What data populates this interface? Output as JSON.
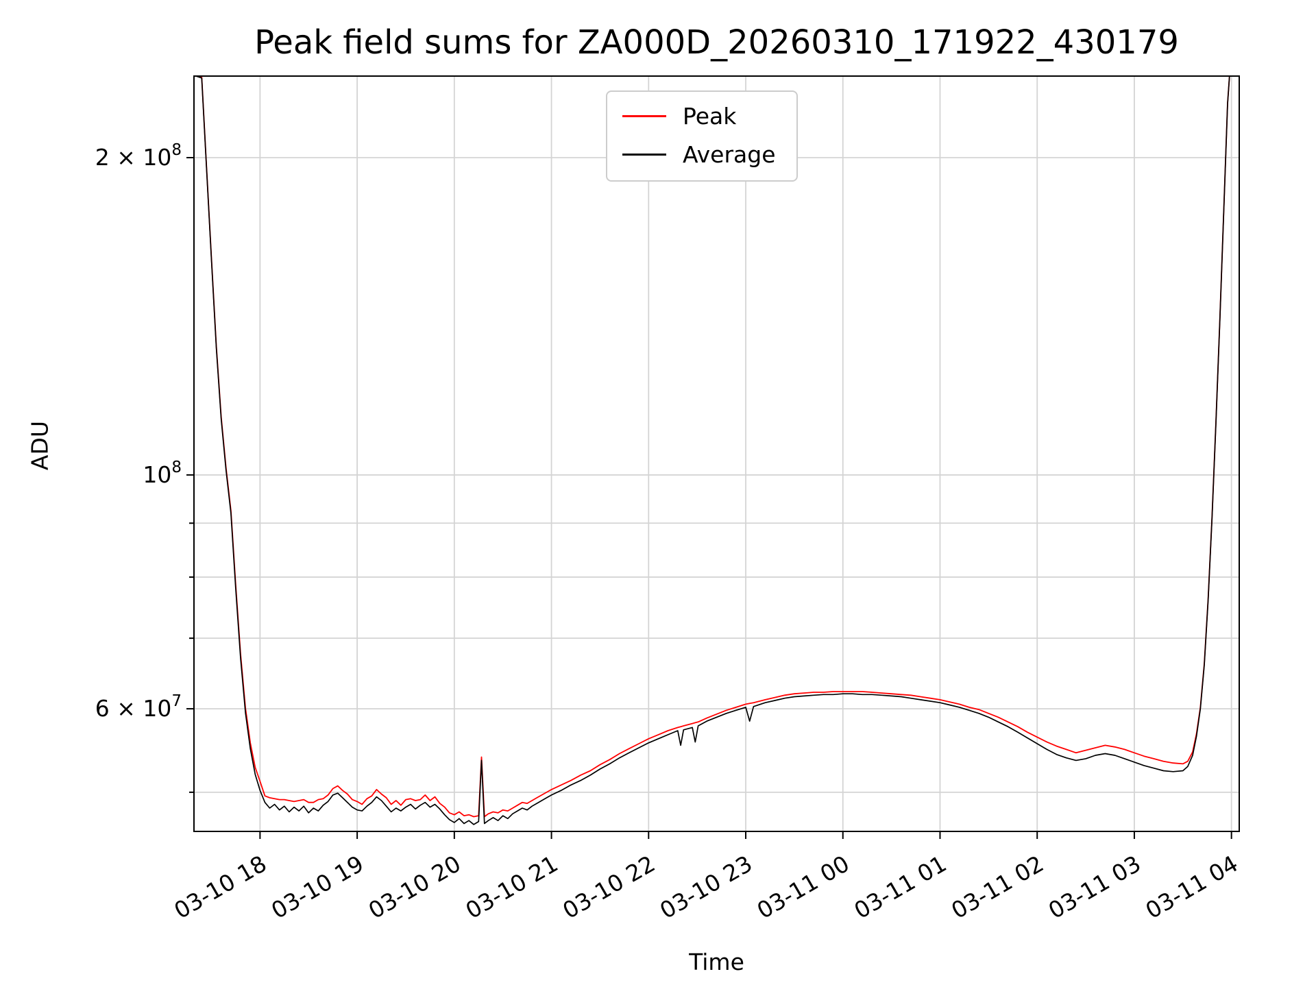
{
  "chart_data": {
    "type": "line",
    "title": "Peak field sums for ZA000D_20260310_171922_430179",
    "xlabel": "Time",
    "ylabel": "ADU",
    "y_scale": "log",
    "grid": true,
    "value_scale": 1000000,
    "x_unit": "hours since 2026-03-10 00:00",
    "xlim": [
      17.32,
      28.08
    ],
    "ylim": [
      45900000,
      239000000
    ],
    "x_ticks": [
      {
        "value": 18,
        "label": "03-10 18"
      },
      {
        "value": 19,
        "label": "03-10 19"
      },
      {
        "value": 20,
        "label": "03-10 20"
      },
      {
        "value": 21,
        "label": "03-10 21"
      },
      {
        "value": 22,
        "label": "03-10 22"
      },
      {
        "value": 23,
        "label": "03-10 23"
      },
      {
        "value": 24,
        "label": "03-11 00"
      },
      {
        "value": 25,
        "label": "03-11 01"
      },
      {
        "value": 26,
        "label": "03-11 02"
      },
      {
        "value": 27,
        "label": "03-11 03"
      },
      {
        "value": 28,
        "label": "03-11 04"
      }
    ],
    "y_ticks": [
      {
        "value": 60000000,
        "label": "6 × 10^7"
      },
      {
        "value": 100000000,
        "label": "10^8"
      },
      {
        "value": 200000000,
        "label": "2 × 10^8"
      }
    ],
    "y_minor_ticks": [
      50000000,
      70000000,
      80000000,
      90000000
    ],
    "y_gridlines": [
      50000000,
      60000000,
      70000000,
      80000000,
      90000000,
      100000000,
      200000000
    ],
    "legend": {
      "position": "top-center",
      "entries": [
        {
          "label": "Peak",
          "color": "#ff0000"
        },
        {
          "label": "Average",
          "color": "#000000"
        }
      ]
    },
    "x": [
      17.34,
      17.4,
      17.45,
      17.5,
      17.55,
      17.6,
      17.65,
      17.7,
      17.75,
      17.8,
      17.85,
      17.9,
      17.95,
      18.0,
      18.05,
      18.1,
      18.15,
      18.2,
      18.25,
      18.3,
      18.35,
      18.4,
      18.45,
      18.5,
      18.55,
      18.6,
      18.65,
      18.7,
      18.75,
      18.8,
      18.85,
      18.9,
      18.95,
      19.0,
      19.05,
      19.1,
      19.15,
      19.2,
      19.25,
      19.3,
      19.35,
      19.4,
      19.45,
      19.5,
      19.55,
      19.6,
      19.65,
      19.7,
      19.75,
      19.8,
      19.85,
      19.9,
      19.95,
      20.0,
      20.05,
      20.1,
      20.15,
      20.2,
      20.25,
      20.28,
      20.31,
      20.35,
      20.4,
      20.45,
      20.5,
      20.55,
      20.6,
      20.65,
      20.7,
      20.75,
      20.8,
      20.85,
      20.9,
      20.95,
      21.0,
      21.1,
      21.2,
      21.3,
      21.4,
      21.5,
      21.6,
      21.7,
      21.8,
      21.9,
      22.0,
      22.1,
      22.2,
      22.3,
      22.33,
      22.36,
      22.45,
      22.48,
      22.51,
      22.6,
      22.7,
      22.8,
      22.9,
      23.0,
      23.04,
      23.08,
      23.2,
      23.3,
      23.4,
      23.5,
      23.6,
      23.7,
      23.8,
      23.9,
      24.0,
      24.1,
      24.2,
      24.3,
      24.4,
      24.5,
      24.6,
      24.7,
      24.8,
      24.9,
      25.0,
      25.1,
      25.2,
      25.3,
      25.4,
      25.5,
      25.6,
      25.7,
      25.8,
      25.9,
      26.0,
      26.1,
      26.2,
      26.3,
      26.4,
      26.5,
      26.6,
      26.7,
      26.8,
      26.9,
      27.0,
      27.1,
      27.2,
      27.3,
      27.4,
      27.5,
      27.55,
      27.6,
      27.64,
      27.68,
      27.72,
      27.76,
      27.8,
      27.84,
      27.88,
      27.92,
      27.96,
      27.98
    ],
    "series": [
      {
        "name": "Peak",
        "color": "#ff0000",
        "line_width": 1.8,
        "values_millions": [
          239,
          238.5,
          195.5,
          160.5,
          132.5,
          113.5,
          101.5,
          92.5,
          78.6,
          67.6,
          60.1,
          55.7,
          52.8,
          51.2,
          49.6,
          49.4,
          49.3,
          49.2,
          49.2,
          49.1,
          49,
          49.1,
          49.2,
          48.9,
          48.9,
          49.2,
          49.3,
          49.7,
          50.4,
          50.7,
          50.2,
          49.8,
          49.2,
          49,
          48.7,
          49.3,
          49.6,
          50.3,
          49.8,
          49.4,
          48.7,
          49.1,
          48.6,
          49.2,
          49.3,
          49.1,
          49.2,
          49.7,
          49.1,
          49.5,
          48.8,
          48.4,
          47.8,
          47.6,
          47.9,
          47.5,
          47.6,
          47.4,
          47.5,
          54,
          47.4,
          47.7,
          47.9,
          47.8,
          48.1,
          48,
          48.3,
          48.6,
          48.9,
          48.8,
          49.1,
          49.4,
          49.7,
          50,
          50.3,
          50.8,
          51.3,
          51.9,
          52.4,
          53.1,
          53.7,
          54.4,
          55,
          55.6,
          56.2,
          56.7,
          57.2,
          57.6,
          57.7,
          57.8,
          58.1,
          58.2,
          58.3,
          58.8,
          59.3,
          59.8,
          60.2,
          60.6,
          60.7,
          60.8,
          61.2,
          61.5,
          61.8,
          62,
          62.1,
          62.2,
          62.2,
          62.3,
          62.3,
          62.3,
          62.3,
          62.2,
          62.1,
          62,
          61.9,
          61.8,
          61.6,
          61.4,
          61.2,
          60.9,
          60.6,
          60.2,
          59.9,
          59.4,
          58.9,
          58.3,
          57.7,
          57,
          56.4,
          55.8,
          55.3,
          54.9,
          54.5,
          54.8,
          55.1,
          55.4,
          55.2,
          54.9,
          54.5,
          54.1,
          53.8,
          53.5,
          53.3,
          53.2,
          53.5,
          54.6,
          56.8,
          60.2,
          66.2,
          76.2,
          91.2,
          112.2,
          140.2,
          177.2,
          225.2,
          239
        ]
      },
      {
        "name": "Average",
        "color": "#000000",
        "line_width": 1.7,
        "values_millions": [
          239,
          238,
          195,
          160,
          132,
          113,
          101,
          92,
          78,
          67,
          59.5,
          55,
          52,
          50.2,
          48.9,
          48.3,
          48.7,
          48.1,
          48.5,
          47.9,
          48.4,
          48,
          48.5,
          47.8,
          48.3,
          48,
          48.6,
          49,
          49.7,
          49.9,
          49.4,
          48.9,
          48.4,
          48.1,
          48,
          48.5,
          48.9,
          49.5,
          49.1,
          48.5,
          47.9,
          48.3,
          48,
          48.4,
          48.7,
          48.2,
          48.6,
          48.9,
          48.4,
          48.7,
          48.2,
          47.6,
          47.1,
          46.8,
          47.2,
          46.7,
          47,
          46.6,
          46.9,
          53.6,
          46.7,
          47,
          47.3,
          47,
          47.5,
          47.2,
          47.7,
          48,
          48.3,
          48.1,
          48.5,
          48.8,
          49.1,
          49.4,
          49.7,
          50.2,
          50.8,
          51.3,
          51.9,
          52.6,
          53.2,
          53.9,
          54.5,
          55.1,
          55.7,
          56.2,
          56.7,
          57.2,
          55.4,
          57.3,
          57.6,
          55.8,
          57.8,
          58.4,
          58.9,
          59.4,
          59.8,
          60.2,
          58.4,
          60.3,
          60.8,
          61.1,
          61.4,
          61.6,
          61.7,
          61.8,
          61.9,
          61.9,
          62,
          62,
          61.9,
          61.9,
          61.8,
          61.7,
          61.6,
          61.4,
          61.2,
          61,
          60.8,
          60.5,
          60.2,
          59.8,
          59.4,
          58.9,
          58.3,
          57.7,
          57,
          56.3,
          55.6,
          54.9,
          54.3,
          53.9,
          53.6,
          53.8,
          54.2,
          54.4,
          54.2,
          53.8,
          53.4,
          53,
          52.7,
          52.4,
          52.3,
          52.4,
          52.9,
          54.2,
          56.5,
          60,
          66,
          76,
          91,
          112,
          140,
          177,
          225,
          239
        ]
      }
    ]
  }
}
